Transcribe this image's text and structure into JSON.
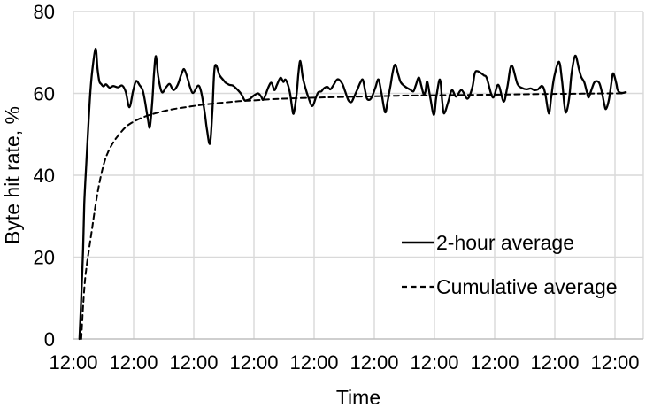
{
  "chart_data": {
    "type": "line",
    "title": "",
    "xlabel": "Time",
    "ylabel": "Byte hit rate, %",
    "grid": true,
    "legend_position": "inside-right-middle",
    "colors": {
      "series_line": "#000000",
      "gridline": "#d9d9d9",
      "axis_line": "#bfbfbf",
      "text": "#000000",
      "background": "#ffffff"
    },
    "x_axis": {
      "tick_labels": [
        "12:00",
        "12:00",
        "12:00",
        "12:00",
        "12:00",
        "12:00",
        "12:00",
        "12:00",
        "12:00",
        "12:00"
      ],
      "tick_interval_days": 1,
      "range_days": [
        0,
        9.47
      ]
    },
    "y_axis": {
      "ticks": [
        0,
        20,
        40,
        60,
        80
      ],
      "range": [
        0,
        80
      ]
    },
    "series": [
      {
        "name": "2-hour average",
        "line_style": "solid",
        "points": [
          [
            0.1,
            0
          ],
          [
            0.13,
            10
          ],
          [
            0.16,
            22
          ],
          [
            0.18,
            33
          ],
          [
            0.21,
            42
          ],
          [
            0.24,
            50
          ],
          [
            0.28,
            60
          ],
          [
            0.32,
            66.5
          ],
          [
            0.37,
            70.9
          ],
          [
            0.4,
            66
          ],
          [
            0.43,
            63
          ],
          [
            0.46,
            62.3
          ],
          [
            0.5,
            61.7
          ],
          [
            0.54,
            62.2
          ],
          [
            0.6,
            61.4
          ],
          [
            0.66,
            61.8
          ],
          [
            0.74,
            61.5
          ],
          [
            0.81,
            61.9
          ],
          [
            0.87,
            60.3
          ],
          [
            0.93,
            56.6
          ],
          [
            0.99,
            60.5
          ],
          [
            1.04,
            63.0
          ],
          [
            1.1,
            62.0
          ],
          [
            1.15,
            60.8
          ],
          [
            1.19,
            58.0
          ],
          [
            1.24,
            53.5
          ],
          [
            1.27,
            51.8
          ],
          [
            1.31,
            58.0
          ],
          [
            1.34,
            65.0
          ],
          [
            1.37,
            69.1
          ],
          [
            1.41,
            64.0
          ],
          [
            1.47,
            60.3
          ],
          [
            1.54,
            61.5
          ],
          [
            1.6,
            62.3
          ],
          [
            1.66,
            60.8
          ],
          [
            1.73,
            62.0
          ],
          [
            1.79,
            64.5
          ],
          [
            1.84,
            65.9
          ],
          [
            1.9,
            63.5
          ],
          [
            1.94,
            61.5
          ],
          [
            1.99,
            60.1
          ],
          [
            2.07,
            61.9
          ],
          [
            2.12,
            60.5
          ],
          [
            2.18,
            55.5
          ],
          [
            2.22,
            51.0
          ],
          [
            2.27,
            47.8
          ],
          [
            2.31,
            56.0
          ],
          [
            2.35,
            66.6
          ],
          [
            2.43,
            64.4
          ],
          [
            2.49,
            63.3
          ],
          [
            2.53,
            62.6
          ],
          [
            2.59,
            62.1
          ],
          [
            2.65,
            61.9
          ],
          [
            2.72,
            61.0
          ],
          [
            2.79,
            59.8
          ],
          [
            2.84,
            58.4
          ],
          [
            2.87,
            58.3
          ],
          [
            2.92,
            58.5
          ],
          [
            2.96,
            59.0
          ],
          [
            3.01,
            59.6
          ],
          [
            3.07,
            60.0
          ],
          [
            3.12,
            59.2
          ],
          [
            3.15,
            58.4
          ],
          [
            3.19,
            59.5
          ],
          [
            3.24,
            61.5
          ],
          [
            3.29,
            62.6
          ],
          [
            3.34,
            60.8
          ],
          [
            3.38,
            62.0
          ],
          [
            3.44,
            63.8
          ],
          [
            3.49,
            62.8
          ],
          [
            3.52,
            63.4
          ],
          [
            3.56,
            62.3
          ],
          [
            3.6,
            60.0
          ],
          [
            3.63,
            57.0
          ],
          [
            3.66,
            55.1
          ],
          [
            3.71,
            60.0
          ],
          [
            3.74,
            65.0
          ],
          [
            3.77,
            67.9
          ],
          [
            3.81,
            64.0
          ],
          [
            3.85,
            61.6
          ],
          [
            3.91,
            58.8
          ],
          [
            3.97,
            56.9
          ],
          [
            4.03,
            59.0
          ],
          [
            4.07,
            60.3
          ],
          [
            4.12,
            60.5
          ],
          [
            4.16,
            61.2
          ],
          [
            4.22,
            61.6
          ],
          [
            4.27,
            61.0
          ],
          [
            4.32,
            62.0
          ],
          [
            4.37,
            63.2
          ],
          [
            4.41,
            63.4
          ],
          [
            4.47,
            62.3
          ],
          [
            4.52,
            60.3
          ],
          [
            4.57,
            58.3
          ],
          [
            4.62,
            57.9
          ],
          [
            4.66,
            59.0
          ],
          [
            4.72,
            61.0
          ],
          [
            4.77,
            62.7
          ],
          [
            4.81,
            63.3
          ],
          [
            4.85,
            60.5
          ],
          [
            4.88,
            58.7
          ],
          [
            4.93,
            58.5
          ],
          [
            4.97,
            59.5
          ],
          [
            5.02,
            61.5
          ],
          [
            5.07,
            63.4
          ],
          [
            5.12,
            60.0
          ],
          [
            5.18,
            55.4
          ],
          [
            5.22,
            58.0
          ],
          [
            5.27,
            62.0
          ],
          [
            5.31,
            65.5
          ],
          [
            5.35,
            67.0
          ],
          [
            5.4,
            64.5
          ],
          [
            5.44,
            62.7
          ],
          [
            5.5,
            61.8
          ],
          [
            5.56,
            61.2
          ],
          [
            5.6,
            60.9
          ],
          [
            5.65,
            60.5
          ],
          [
            5.69,
            62.0
          ],
          [
            5.74,
            63.9
          ],
          [
            5.78,
            62.0
          ],
          [
            5.82,
            59.8
          ],
          [
            5.85,
            60.5
          ],
          [
            5.88,
            62.9
          ],
          [
            5.93,
            59.0
          ],
          [
            5.99,
            54.7
          ],
          [
            6.03,
            59.0
          ],
          [
            6.09,
            63.4
          ],
          [
            6.13,
            58.0
          ],
          [
            6.16,
            55.1
          ],
          [
            6.23,
            58.0
          ],
          [
            6.29,
            60.8
          ],
          [
            6.36,
            59.2
          ],
          [
            6.45,
            60.8
          ],
          [
            6.55,
            58.7
          ],
          [
            6.63,
            61.5
          ],
          [
            6.67,
            64.9
          ],
          [
            6.72,
            65.4
          ],
          [
            6.82,
            64.4
          ],
          [
            6.87,
            63.7
          ],
          [
            6.97,
            59.0
          ],
          [
            7.06,
            62.1
          ],
          [
            7.15,
            58.0
          ],
          [
            7.21,
            61.5
          ],
          [
            7.28,
            66.8
          ],
          [
            7.38,
            62.3
          ],
          [
            7.46,
            61.3
          ],
          [
            7.53,
            61.0
          ],
          [
            7.6,
            61.2
          ],
          [
            7.66,
            60.8
          ],
          [
            7.72,
            61.0
          ],
          [
            7.79,
            61.8
          ],
          [
            7.84,
            60.0
          ],
          [
            7.9,
            55.1
          ],
          [
            7.94,
            59.0
          ],
          [
            7.99,
            64.0
          ],
          [
            8.07,
            67.7
          ],
          [
            8.12,
            63.0
          ],
          [
            8.16,
            57.0
          ],
          [
            8.19,
            55.4
          ],
          [
            8.24,
            59.0
          ],
          [
            8.28,
            65.0
          ],
          [
            8.34,
            69.2
          ],
          [
            8.4,
            66.0
          ],
          [
            8.44,
            64.0
          ],
          [
            8.49,
            62.7
          ],
          [
            8.53,
            60.5
          ],
          [
            8.56,
            59.0
          ],
          [
            8.6,
            60.5
          ],
          [
            8.65,
            62.5
          ],
          [
            8.69,
            63.0
          ],
          [
            8.74,
            62.5
          ],
          [
            8.78,
            60.5
          ],
          [
            8.82,
            57.5
          ],
          [
            8.85,
            56.2
          ],
          [
            8.9,
            58.5
          ],
          [
            8.94,
            62.5
          ],
          [
            8.97,
            64.9
          ],
          [
            9.02,
            62.5
          ],
          [
            9.04,
            61.0
          ],
          [
            9.07,
            60.3
          ],
          [
            9.12,
            60.1
          ],
          [
            9.18,
            60.3
          ]
        ]
      },
      {
        "name": "Cumulative average",
        "line_style": "dashed",
        "points": [
          [
            0.13,
            0
          ],
          [
            0.16,
            8
          ],
          [
            0.19,
            14
          ],
          [
            0.22,
            18
          ],
          [
            0.25,
            21
          ],
          [
            0.31,
            27
          ],
          [
            0.37,
            33
          ],
          [
            0.43,
            38
          ],
          [
            0.5,
            42.5
          ],
          [
            0.57,
            45.5
          ],
          [
            0.66,
            48
          ],
          [
            0.76,
            50
          ],
          [
            0.87,
            51.8
          ],
          [
            0.99,
            53
          ],
          [
            1.13,
            54
          ],
          [
            1.28,
            54.8
          ],
          [
            1.43,
            55.4
          ],
          [
            1.57,
            55.9
          ],
          [
            1.72,
            56.3
          ],
          [
            1.9,
            56.7
          ],
          [
            2.09,
            57.1
          ],
          [
            2.31,
            57.5
          ],
          [
            2.53,
            57.8
          ],
          [
            2.75,
            58.1
          ],
          [
            3.0,
            58.3
          ],
          [
            3.26,
            58.55
          ],
          [
            3.49,
            58.7
          ],
          [
            3.78,
            58.85
          ],
          [
            4.0,
            58.95
          ],
          [
            4.29,
            59.05
          ],
          [
            4.59,
            59.15
          ],
          [
            4.88,
            59.25
          ],
          [
            5.18,
            59.35
          ],
          [
            5.47,
            59.45
          ],
          [
            5.76,
            59.5
          ],
          [
            6.06,
            59.55
          ],
          [
            6.35,
            59.6
          ],
          [
            6.72,
            59.65
          ],
          [
            7.09,
            59.7
          ],
          [
            7.46,
            59.78
          ],
          [
            7.82,
            59.85
          ],
          [
            8.19,
            59.9
          ],
          [
            8.56,
            59.95
          ],
          [
            8.93,
            60.0
          ],
          [
            9.15,
            60.0
          ]
        ]
      }
    ]
  }
}
